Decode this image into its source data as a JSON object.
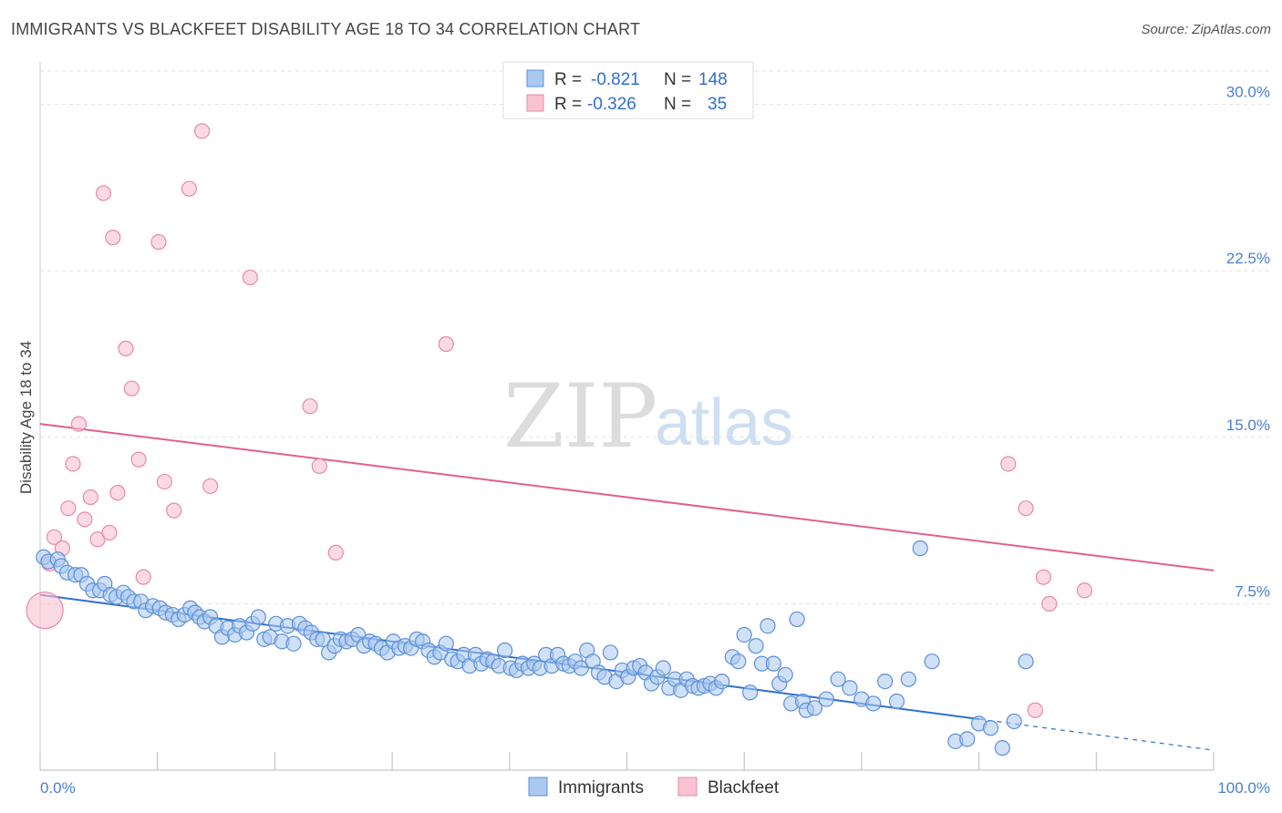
{
  "title": "IMMIGRANTS VS BLACKFEET DISABILITY AGE 18 TO 34 CORRELATION CHART",
  "source": "Source: ZipAtlas.com",
  "watermark": {
    "zip": "ZIP",
    "atlas": "atlas"
  },
  "legend": {
    "rows": [
      {
        "r_label": "R =",
        "r_value": "-0.821",
        "n_label": "N =",
        "n_value": "148"
      },
      {
        "r_label": "R =",
        "r_value": "-0.326",
        "n_label": "N =",
        "n_value": "35"
      }
    ]
  },
  "bottom_legend": [
    "Immigrants",
    "Blackfeet"
  ],
  "colors": {
    "immigrants_fill": "#aac8f0",
    "immigrants_stroke": "#5b8fd8",
    "immigrants_line": "#2f6fd0",
    "blackfeet_fill": "#f8c2d2",
    "blackfeet_stroke": "#e88aa6",
    "blackfeet_line": "#e06090",
    "grid": "#e3e3e3",
    "tick_text": "#4a7fd0"
  },
  "chart_data": {
    "type": "scatter",
    "title": "IMMIGRANTS VS BLACKFEET DISABILITY AGE 18 TO 34 CORRELATION CHART",
    "xlabel": "",
    "ylabel": "Disability Age 18 to 34",
    "xlim": [
      0,
      100
    ],
    "ylim": [
      0,
      31.5
    ],
    "x_tick_labels": [
      "0.0%",
      "100.0%"
    ],
    "y_ticks": [
      7.5,
      15.0,
      22.5,
      30.0
    ],
    "y_tick_labels": [
      "7.5%",
      "15.0%",
      "22.5%",
      "30.0%"
    ],
    "grid": true,
    "legend_position": "top-center",
    "series": [
      {
        "name": "Immigrants",
        "r": -0.821,
        "n": 148,
        "trend": {
          "x": [
            0,
            80
          ],
          "y": [
            7.9,
            2.3
          ],
          "dashed_to": {
            "x": 100,
            "y": 0.9
          }
        },
        "points": [
          [
            0.3,
            9.6
          ],
          [
            0.7,
            9.4
          ],
          [
            1.5,
            9.5
          ],
          [
            1.8,
            9.2
          ],
          [
            2.3,
            8.9
          ],
          [
            3.0,
            8.8
          ],
          [
            3.5,
            8.8
          ],
          [
            4.0,
            8.4
          ],
          [
            4.5,
            8.1
          ],
          [
            5.1,
            8.1
          ],
          [
            5.5,
            8.4
          ],
          [
            6.0,
            7.9
          ],
          [
            6.5,
            7.8
          ],
          [
            7.1,
            8.0
          ],
          [
            7.5,
            7.8
          ],
          [
            8.0,
            7.6
          ],
          [
            8.6,
            7.6
          ],
          [
            9.0,
            7.2
          ],
          [
            9.6,
            7.4
          ],
          [
            10.2,
            7.3
          ],
          [
            10.7,
            7.1
          ],
          [
            11.3,
            7.0
          ],
          [
            11.8,
            6.8
          ],
          [
            12.3,
            7.0
          ],
          [
            12.8,
            7.3
          ],
          [
            13.2,
            7.1
          ],
          [
            13.6,
            6.9
          ],
          [
            14.0,
            6.7
          ],
          [
            14.5,
            6.9
          ],
          [
            15.0,
            6.5
          ],
          [
            15.5,
            6.0
          ],
          [
            16.0,
            6.4
          ],
          [
            16.6,
            6.1
          ],
          [
            17.0,
            6.5
          ],
          [
            17.6,
            6.2
          ],
          [
            18.1,
            6.6
          ],
          [
            18.6,
            6.9
          ],
          [
            19.1,
            5.9
          ],
          [
            19.6,
            6.0
          ],
          [
            20.1,
            6.6
          ],
          [
            20.6,
            5.8
          ],
          [
            21.1,
            6.5
          ],
          [
            21.6,
            5.7
          ],
          [
            22.1,
            6.6
          ],
          [
            22.6,
            6.4
          ],
          [
            23.1,
            6.2
          ],
          [
            23.6,
            5.9
          ],
          [
            24.1,
            5.9
          ],
          [
            24.6,
            5.3
          ],
          [
            25.1,
            5.6
          ],
          [
            25.6,
            5.9
          ],
          [
            26.1,
            5.8
          ],
          [
            26.6,
            5.9
          ],
          [
            27.1,
            6.1
          ],
          [
            27.6,
            5.6
          ],
          [
            28.1,
            5.8
          ],
          [
            28.6,
            5.7
          ],
          [
            29.1,
            5.5
          ],
          [
            29.6,
            5.3
          ],
          [
            30.1,
            5.8
          ],
          [
            30.6,
            5.5
          ],
          [
            31.1,
            5.6
          ],
          [
            31.6,
            5.5
          ],
          [
            32.1,
            5.9
          ],
          [
            32.6,
            5.8
          ],
          [
            33.1,
            5.4
          ],
          [
            33.6,
            5.1
          ],
          [
            34.1,
            5.3
          ],
          [
            34.6,
            5.7
          ],
          [
            35.1,
            5.0
          ],
          [
            35.6,
            4.9
          ],
          [
            36.1,
            5.2
          ],
          [
            36.6,
            4.7
          ],
          [
            37.1,
            5.2
          ],
          [
            37.6,
            4.8
          ],
          [
            38.1,
            5.0
          ],
          [
            38.6,
            4.9
          ],
          [
            39.1,
            4.7
          ],
          [
            39.6,
            5.4
          ],
          [
            40.1,
            4.6
          ],
          [
            40.6,
            4.5
          ],
          [
            41.1,
            4.8
          ],
          [
            41.6,
            4.6
          ],
          [
            42.1,
            4.8
          ],
          [
            42.6,
            4.6
          ],
          [
            43.1,
            5.2
          ],
          [
            43.6,
            4.7
          ],
          [
            44.1,
            5.2
          ],
          [
            44.6,
            4.8
          ],
          [
            45.1,
            4.7
          ],
          [
            45.6,
            4.9
          ],
          [
            46.1,
            4.6
          ],
          [
            46.6,
            5.4
          ],
          [
            47.1,
            4.9
          ],
          [
            47.6,
            4.4
          ],
          [
            48.1,
            4.2
          ],
          [
            48.6,
            5.3
          ],
          [
            49.1,
            4.0
          ],
          [
            49.6,
            4.5
          ],
          [
            50.1,
            4.2
          ],
          [
            50.6,
            4.6
          ],
          [
            51.1,
            4.7
          ],
          [
            51.6,
            4.4
          ],
          [
            52.1,
            3.9
          ],
          [
            52.6,
            4.2
          ],
          [
            53.1,
            4.6
          ],
          [
            53.6,
            3.7
          ],
          [
            54.1,
            4.1
          ],
          [
            54.6,
            3.6
          ],
          [
            55.1,
            4.1
          ],
          [
            55.6,
            3.8
          ],
          [
            56.1,
            3.7
          ],
          [
            56.6,
            3.8
          ],
          [
            57.1,
            3.9
          ],
          [
            57.6,
            3.7
          ],
          [
            58.1,
            4.0
          ],
          [
            59.0,
            5.1
          ],
          [
            59.5,
            4.9
          ],
          [
            60.0,
            6.1
          ],
          [
            60.5,
            3.5
          ],
          [
            61.0,
            5.6
          ],
          [
            61.5,
            4.8
          ],
          [
            62.0,
            6.5
          ],
          [
            62.5,
            4.8
          ],
          [
            63.0,
            3.9
          ],
          [
            63.5,
            4.3
          ],
          [
            64.0,
            3.0
          ],
          [
            64.5,
            6.8
          ],
          [
            65.0,
            3.1
          ],
          [
            65.3,
            2.7
          ],
          [
            66.0,
            2.8
          ],
          [
            67.0,
            3.2
          ],
          [
            68.0,
            4.1
          ],
          [
            69.0,
            3.7
          ],
          [
            70.0,
            3.2
          ],
          [
            71.0,
            3.0
          ],
          [
            72.0,
            4.0
          ],
          [
            73.0,
            3.1
          ],
          [
            74.0,
            4.1
          ],
          [
            75.0,
            10.0
          ],
          [
            76.0,
            4.9
          ],
          [
            78.0,
            1.3
          ],
          [
            79.0,
            1.4
          ],
          [
            80.0,
            2.1
          ],
          [
            81.0,
            1.9
          ],
          [
            82.0,
            1.0
          ],
          [
            83.0,
            2.2
          ],
          [
            84.0,
            4.9
          ]
        ]
      },
      {
        "name": "Blackfeet",
        "r": -0.326,
        "n": 35,
        "trend": {
          "x": [
            0,
            100
          ],
          "y": [
            15.6,
            9.0
          ]
        },
        "points": [
          [
            0.4,
            7.2
          ],
          [
            0.8,
            9.3
          ],
          [
            1.2,
            10.5
          ],
          [
            1.9,
            10.0
          ],
          [
            2.4,
            11.8
          ],
          [
            2.8,
            13.8
          ],
          [
            3.3,
            15.6
          ],
          [
            3.8,
            11.3
          ],
          [
            4.3,
            12.3
          ],
          [
            4.9,
            10.4
          ],
          [
            5.4,
            26.0
          ],
          [
            5.9,
            10.7
          ],
          [
            6.2,
            24.0
          ],
          [
            6.6,
            12.5
          ],
          [
            7.3,
            19.0
          ],
          [
            7.8,
            17.2
          ],
          [
            8.4,
            14.0
          ],
          [
            8.8,
            8.7
          ],
          [
            10.1,
            23.8
          ],
          [
            10.6,
            13.0
          ],
          [
            11.4,
            11.7
          ],
          [
            12.7,
            26.2
          ],
          [
            13.8,
            28.8
          ],
          [
            14.5,
            12.8
          ],
          [
            17.9,
            22.2
          ],
          [
            23.0,
            16.4
          ],
          [
            23.8,
            13.7
          ],
          [
            25.2,
            9.8
          ],
          [
            34.6,
            19.2
          ],
          [
            82.5,
            13.8
          ],
          [
            84.0,
            11.8
          ],
          [
            84.8,
            2.7
          ],
          [
            85.5,
            8.7
          ],
          [
            86.0,
            7.5
          ],
          [
            89.0,
            8.1
          ]
        ],
        "big_point_index": 0
      }
    ]
  }
}
